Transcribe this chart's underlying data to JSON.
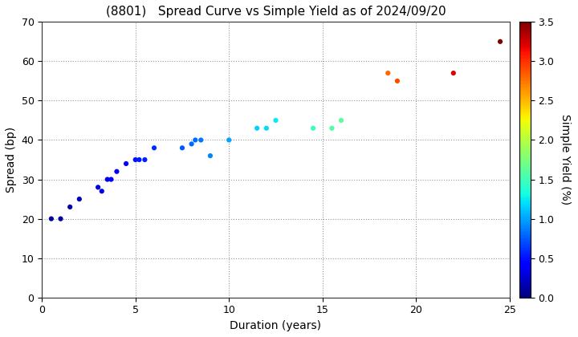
{
  "title": "(8801)   Spread Curve vs Simple Yield as of 2024/09/20",
  "xlabel": "Duration (years)",
  "ylabel": "Spread (bp)",
  "colorbar_label": "Simple Yield (%)",
  "xlim": [
    0,
    25
  ],
  "ylim": [
    0,
    70
  ],
  "xticks": [
    0,
    5,
    10,
    15,
    20,
    25
  ],
  "yticks": [
    0,
    10,
    20,
    30,
    40,
    50,
    60,
    70
  ],
  "colorbar_ticks": [
    0.0,
    0.5,
    1.0,
    1.5,
    2.0,
    2.5,
    3.0,
    3.5
  ],
  "cmap": "jet",
  "vmin": 0.0,
  "vmax": 3.5,
  "points": [
    {
      "duration": 0.5,
      "spread": 20,
      "simple_yield": 0.1
    },
    {
      "duration": 1.0,
      "spread": 20,
      "simple_yield": 0.12
    },
    {
      "duration": 1.5,
      "spread": 23,
      "simple_yield": 0.15
    },
    {
      "duration": 2.0,
      "spread": 25,
      "simple_yield": 0.2
    },
    {
      "duration": 3.0,
      "spread": 28,
      "simple_yield": 0.3
    },
    {
      "duration": 3.2,
      "spread": 27,
      "simple_yield": 0.32
    },
    {
      "duration": 3.5,
      "spread": 30,
      "simple_yield": 0.35
    },
    {
      "duration": 3.7,
      "spread": 30,
      "simple_yield": 0.37
    },
    {
      "duration": 4.0,
      "spread": 32,
      "simple_yield": 0.4
    },
    {
      "duration": 4.5,
      "spread": 34,
      "simple_yield": 0.45
    },
    {
      "duration": 5.0,
      "spread": 35,
      "simple_yield": 0.5
    },
    {
      "duration": 5.2,
      "spread": 35,
      "simple_yield": 0.52
    },
    {
      "duration": 5.5,
      "spread": 35,
      "simple_yield": 0.55
    },
    {
      "duration": 6.0,
      "spread": 38,
      "simple_yield": 0.6
    },
    {
      "duration": 7.5,
      "spread": 38,
      "simple_yield": 0.75
    },
    {
      "duration": 8.0,
      "spread": 39,
      "simple_yield": 0.8
    },
    {
      "duration": 8.2,
      "spread": 40,
      "simple_yield": 0.82
    },
    {
      "duration": 8.5,
      "spread": 40,
      "simple_yield": 0.85
    },
    {
      "duration": 9.0,
      "spread": 36,
      "simple_yield": 0.9
    },
    {
      "duration": 10.0,
      "spread": 40,
      "simple_yield": 1.0
    },
    {
      "duration": 11.5,
      "spread": 43,
      "simple_yield": 1.15
    },
    {
      "duration": 12.0,
      "spread": 43,
      "simple_yield": 1.2
    },
    {
      "duration": 12.5,
      "spread": 45,
      "simple_yield": 1.25
    },
    {
      "duration": 14.5,
      "spread": 43,
      "simple_yield": 1.45
    },
    {
      "duration": 15.5,
      "spread": 43,
      "simple_yield": 1.55
    },
    {
      "duration": 16.0,
      "spread": 45,
      "simple_yield": 1.6
    },
    {
      "duration": 18.5,
      "spread": 57,
      "simple_yield": 2.8
    },
    {
      "duration": 19.0,
      "spread": 55,
      "simple_yield": 2.9
    },
    {
      "duration": 22.0,
      "spread": 57,
      "simple_yield": 3.2
    },
    {
      "duration": 24.5,
      "spread": 65,
      "simple_yield": 3.5
    }
  ],
  "bg_color": "#ffffff",
  "grid_color": "#999999",
  "marker_size": 20,
  "title_fontsize": 11,
  "axis_label_fontsize": 10,
  "tick_fontsize": 9
}
